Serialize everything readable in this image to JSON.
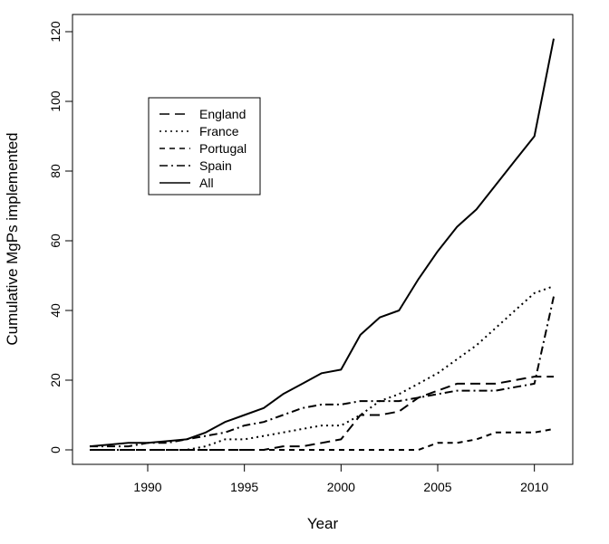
{
  "chart_data": {
    "type": "line",
    "title": "",
    "xlabel": "Year",
    "ylabel": "Cumulative MgPs implemented",
    "xlim": [
      1987,
      2011
    ],
    "ylim": [
      0,
      120
    ],
    "x_ticks": [
      1990,
      1995,
      2000,
      2005,
      2010
    ],
    "y_ticks": [
      0,
      20,
      40,
      60,
      80,
      100,
      120
    ],
    "grid": false,
    "legend_position": "top-left",
    "x": [
      1987,
      1988,
      1989,
      1990,
      1991,
      1992,
      1993,
      1994,
      1995,
      1996,
      1997,
      1998,
      1999,
      2000,
      2001,
      2002,
      2003,
      2004,
      2005,
      2006,
      2007,
      2008,
      2009,
      2010,
      2011
    ],
    "series": [
      {
        "name": "England",
        "dash": "long-dash",
        "values": [
          0,
          0,
          0,
          0,
          0,
          0,
          0,
          0,
          0,
          0,
          1,
          1,
          2,
          3,
          10,
          10,
          11,
          15,
          17,
          19,
          19,
          19,
          20,
          21,
          21
        ]
      },
      {
        "name": "France",
        "dash": "dotted",
        "values": [
          0,
          0,
          0,
          0,
          0,
          0,
          1,
          3,
          3,
          4,
          5,
          6,
          7,
          7,
          10,
          14,
          16,
          19,
          22,
          26,
          30,
          35,
          40,
          45,
          47
        ]
      },
      {
        "name": "Portugal",
        "dash": "short-dash",
        "values": [
          0,
          0,
          0,
          0,
          0,
          0,
          0,
          0,
          0,
          0,
          0,
          0,
          0,
          0,
          0,
          0,
          0,
          0,
          2,
          2,
          3,
          5,
          5,
          5,
          6
        ]
      },
      {
        "name": "Spain",
        "dash": "dash-dot",
        "values": [
          1,
          1,
          1,
          2,
          2,
          3,
          4,
          5,
          7,
          8,
          10,
          12,
          13,
          13,
          14,
          14,
          14,
          15,
          16,
          17,
          17,
          17,
          18,
          19,
          44
        ]
      },
      {
        "name": "All",
        "dash": "solid",
        "values": [
          1,
          1.5,
          2,
          2,
          2.5,
          3,
          5,
          8,
          10,
          12,
          16,
          19,
          22,
          23,
          33,
          38,
          40,
          49,
          57,
          64,
          69,
          76,
          83,
          90,
          118
        ]
      }
    ]
  }
}
